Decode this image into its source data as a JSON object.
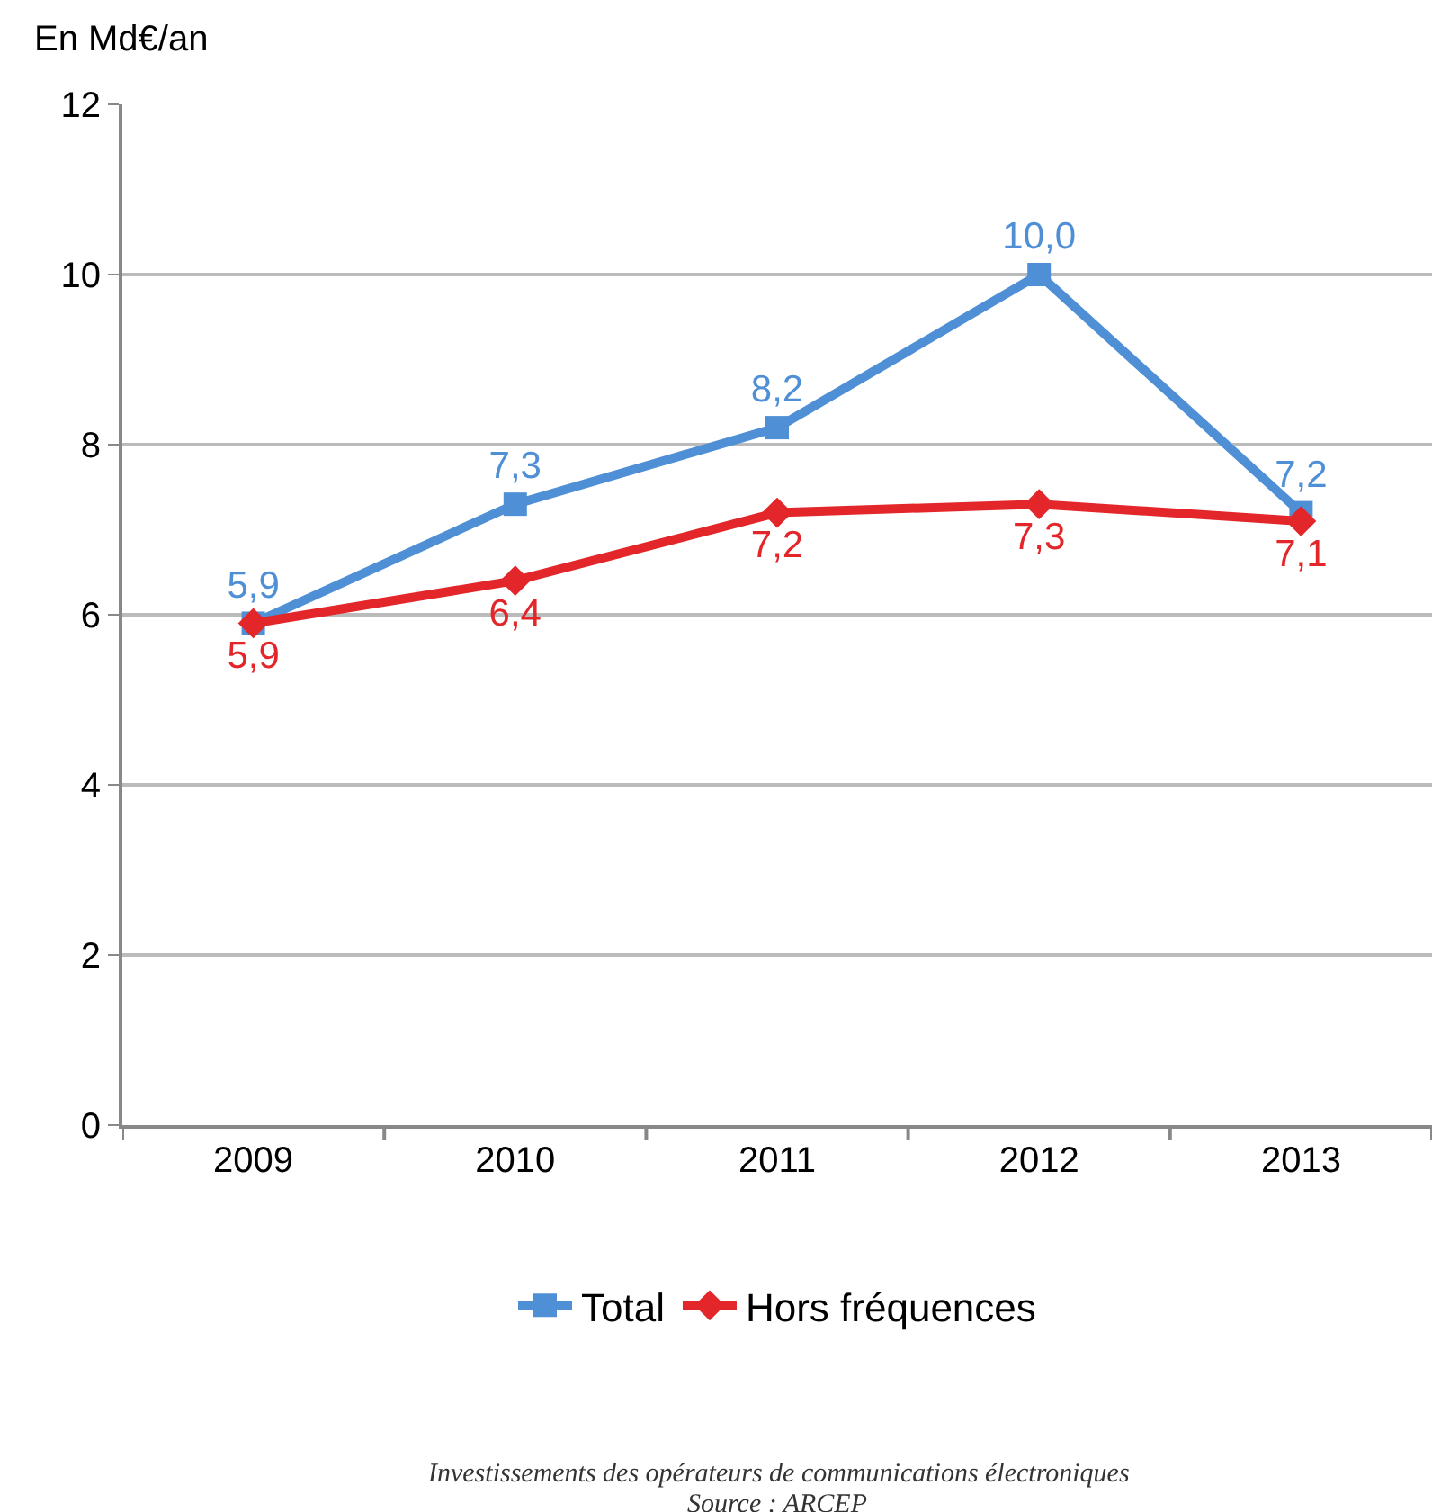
{
  "chart_data": {
    "type": "line",
    "ylabel": "En Md€/an",
    "categories": [
      "2009",
      "2010",
      "2011",
      "2012",
      "2013"
    ],
    "series": [
      {
        "name": "Total",
        "color": "#4f8fd6",
        "marker": "square",
        "values": [
          5.9,
          7.3,
          8.2,
          10.0,
          7.2
        ],
        "value_labels": [
          "5,9",
          "7,3",
          "8,2",
          "10,0",
          "7,2"
        ]
      },
      {
        "name": "Hors fréquences",
        "color": "#e3262a",
        "marker": "diamond",
        "values": [
          5.9,
          6.4,
          7.2,
          7.3,
          7.1
        ],
        "value_labels": [
          "5,9",
          "6,4",
          "7,2",
          "7,3",
          "7,1"
        ]
      }
    ],
    "ylim": [
      0,
      12
    ],
    "yticks": [
      0,
      2,
      4,
      6,
      8,
      10,
      12
    ],
    "grid": "y",
    "legend": "bottom",
    "line_style": "solid",
    "annotations": [
      "Investissements des opérateurs de communications électroniques",
      "Source : ARCEP"
    ]
  }
}
